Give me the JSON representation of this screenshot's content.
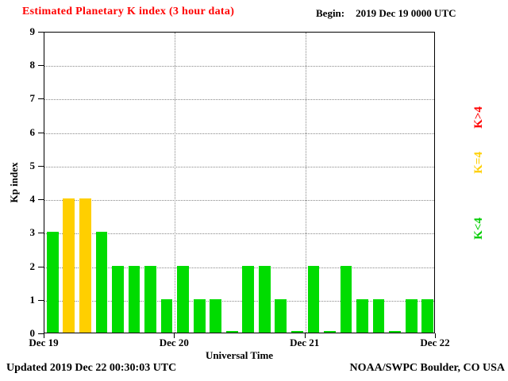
{
  "header": {
    "title": "Estimated Planetary K index (3 hour data)",
    "begin_label": "Begin:",
    "begin_value": "2019 Dec 19 0000 UTC"
  },
  "footer": {
    "updated": "Updated 2019 Dec 22 00:30:03 UTC",
    "source": "NOAA/SWPC Boulder, CO USA"
  },
  "chart_data": {
    "type": "bar",
    "title": "Estimated Planetary K index (3 hour data)",
    "xlabel": "Universal Time",
    "ylabel": "Kp index",
    "ylim": [
      0,
      9
    ],
    "yticks": [
      0,
      1,
      2,
      3,
      4,
      5,
      6,
      7,
      8,
      9
    ],
    "xtick_labels": [
      "Dec 19",
      "Dec 20",
      "Dec 21",
      "Dec 22"
    ],
    "days": 3,
    "bins_per_day": 8,
    "bin_hours": 3,
    "values": [
      3,
      4,
      4,
      3,
      2,
      2,
      2,
      1,
      2,
      1,
      1,
      0,
      2,
      2,
      1,
      0,
      2,
      0,
      2,
      1,
      1,
      0,
      1,
      1
    ],
    "grid": true,
    "colors": {
      "green": "#00dc00",
      "yellow": "#ffcf00",
      "red": "#ff0000"
    },
    "legend": [
      {
        "label": "K>4",
        "color": "#ff0000",
        "position": "right-top"
      },
      {
        "label": "K=4",
        "color": "#ffcf00",
        "position": "right-middle"
      },
      {
        "label": "K<4",
        "color": "#00cc00",
        "position": "right-bottom"
      }
    ]
  }
}
